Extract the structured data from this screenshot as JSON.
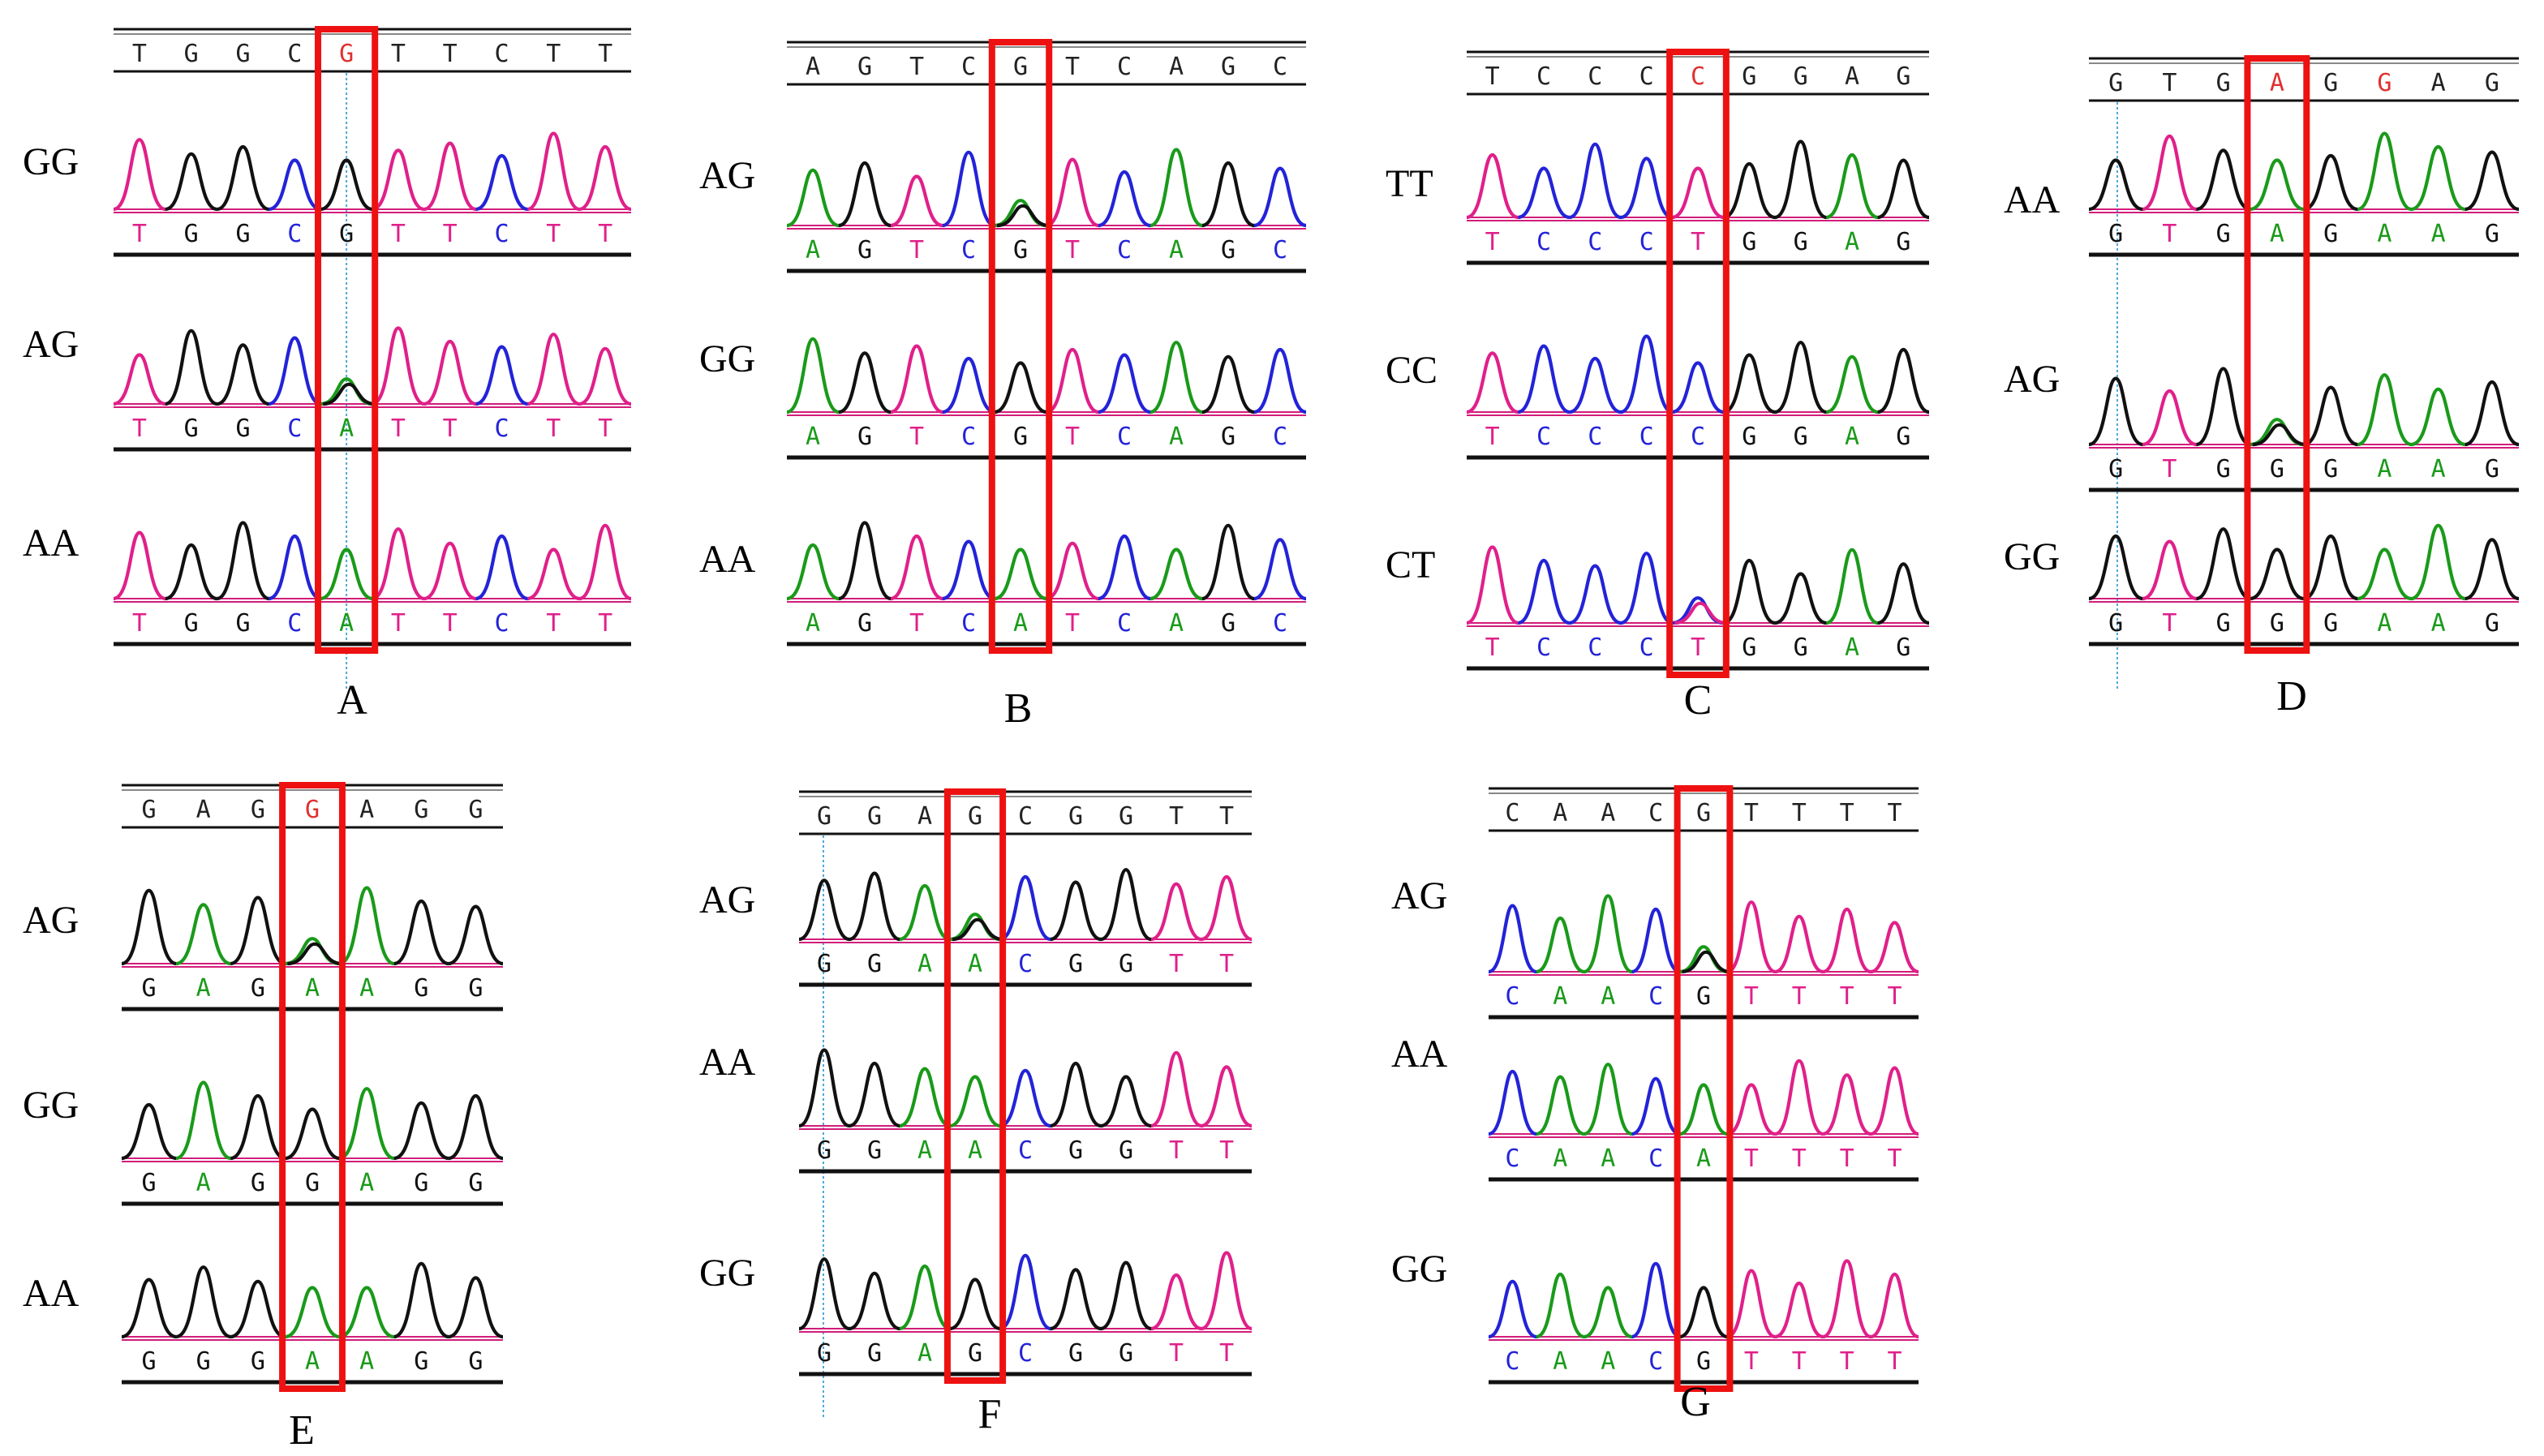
{
  "colors": {
    "A": "#1a9a1a",
    "C": "#2323d8",
    "G": "#111111",
    "T": "#e0208a",
    "highlight_base": "#e03030",
    "box": "#ee1111",
    "line": "#111111",
    "guide": "#4fa8d8"
  },
  "panels": [
    {
      "id": "A",
      "label": "A",
      "ref": "TGGCGTTCTT",
      "ref_highlight": 4,
      "snp_index": 4,
      "rows": [
        {
          "genotype": "GG",
          "bases": "TGGCGTTCTT",
          "snp": "G"
        },
        {
          "genotype": "AG",
          "bases": "TGGCATTCTT",
          "snp": "AG"
        },
        {
          "genotype": "AA",
          "bases": "TGGCATTCTT",
          "snp": "A"
        }
      ]
    },
    {
      "id": "B",
      "label": "B",
      "ref": "AGTCGTCAGC",
      "ref_highlight": -1,
      "snp_index": 4,
      "rows": [
        {
          "genotype": "AG",
          "bases": "AGTCGTCAGC",
          "snp": "AG"
        },
        {
          "genotype": "GG",
          "bases": "AGTCGTCAGC",
          "snp": "G"
        },
        {
          "genotype": "AA",
          "bases": "AGTCATCAGC",
          "snp": "A"
        }
      ]
    },
    {
      "id": "C",
      "label": "C",
      "ref": "TCCCCGGAG",
      "ref_highlight": 4,
      "snp_index": 4,
      "rows": [
        {
          "genotype": "TT",
          "bases": "TCCCTGGAG",
          "snp": "T"
        },
        {
          "genotype": "CC",
          "bases": "TCCCCGGAG",
          "snp": "C"
        },
        {
          "genotype": "CT",
          "bases": "TCCCTGGAG",
          "snp": "CT"
        }
      ]
    },
    {
      "id": "D",
      "label": "D",
      "ref": "GTGAGGAG",
      "ref_highlight": 3,
      "ref_highlight2": 5,
      "snp_index": 3,
      "rows": [
        {
          "genotype": "AA",
          "bases": "GTGAGAAG",
          "snp": "A"
        },
        {
          "genotype": "AG",
          "bases": "GTGGGAAG",
          "snp": "AG"
        },
        {
          "genotype": "GG",
          "bases": "GTGGGAAG",
          "snp": "G"
        }
      ]
    },
    {
      "id": "E",
      "label": "E",
      "ref": "GAGGAGG",
      "ref_highlight": 3,
      "snp_index": 3,
      "rows": [
        {
          "genotype": "AG",
          "bases": "GAGAAGG",
          "snp": "AG"
        },
        {
          "genotype": "GG",
          "bases": "GAGGAGG",
          "snp": "G"
        },
        {
          "genotype": "AA",
          "bases": "GGGAAGG",
          "snp": "A"
        }
      ]
    },
    {
      "id": "F",
      "label": "F",
      "ref": "GGAGCGGTT",
      "ref_highlight": -1,
      "snp_index": 3,
      "rows": [
        {
          "genotype": "AG",
          "bases": "GGAACGGTT",
          "snp": "AG"
        },
        {
          "genotype": "AA",
          "bases": "GGAACGGTT",
          "snp": "A"
        },
        {
          "genotype": "GG",
          "bases": "GGAGCGGTT",
          "snp": "G"
        }
      ]
    },
    {
      "id": "G",
      "label": "G",
      "ref": "CAACGTTTT",
      "ref_highlight": -1,
      "snp_index": 4,
      "rows": [
        {
          "genotype": "AG",
          "bases": "CAACGTTTT",
          "snp": "AG"
        },
        {
          "genotype": "AA",
          "bases": "CAACATTTT",
          "snp": "A"
        },
        {
          "genotype": "GG",
          "bases": "CAACGTTTT",
          "snp": "G"
        }
      ]
    }
  ]
}
